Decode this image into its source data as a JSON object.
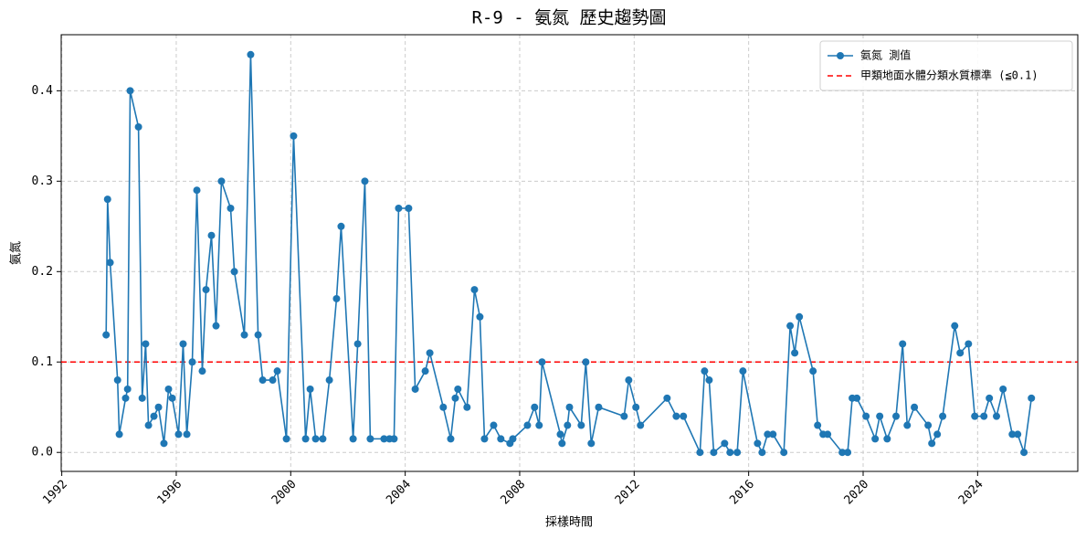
{
  "chart_data": {
    "type": "line",
    "title": "R-9 - 氨氮 歷史趨勢圖",
    "xlabel": "採樣時間",
    "ylabel": "氨氮",
    "xlim": [
      1991.98,
      2027.5
    ],
    "xticks": [
      1992,
      1996,
      2000,
      2004,
      2008,
      2012,
      2016,
      2020,
      2024
    ],
    "ylim": [
      -0.021,
      0.462
    ],
    "yticks": [
      {
        "value": 0,
        "label": "0.0"
      },
      0.1,
      0.2,
      0.3,
      0.4
    ],
    "grid": true,
    "legend": "upper right",
    "series": [
      {
        "name": "氨氮 測值",
        "color": "#1f77b4",
        "x": [
          1993.55,
          1993.6,
          1993.69,
          1993.95,
          1994.01,
          1994.23,
          1994.3,
          1994.39,
          1994.68,
          1994.81,
          1994.93,
          1995.03,
          1995.22,
          1995.38,
          1995.57,
          1995.73,
          1995.86,
          1996.08,
          1996.24,
          1996.37,
          1996.56,
          1996.72,
          1996.91,
          1997.04,
          1997.23,
          1997.39,
          1997.58,
          1997.9,
          1998.03,
          1998.38,
          1998.6,
          1998.86,
          1999.02,
          1999.37,
          1999.53,
          1999.85,
          2000.1,
          2000.52,
          2000.68,
          2000.87,
          2001.12,
          2001.35,
          2001.6,
          2001.76,
          2002.18,
          2002.34,
          2002.59,
          2002.78,
          2003.26,
          2003.45,
          2003.61,
          2003.77,
          2004.12,
          2004.35,
          2004.7,
          2004.86,
          2005.33,
          2005.59,
          2005.75,
          2005.84,
          2006.16,
          2006.42,
          2006.61,
          2006.77,
          2007.09,
          2007.34,
          2007.66,
          2007.76,
          2008.27,
          2008.52,
          2008.68,
          2008.78,
          2009.42,
          2009.48,
          2009.67,
          2009.74,
          2010.15,
          2010.31,
          2010.5,
          2010.76,
          2011.65,
          2011.81,
          2012.06,
          2012.22,
          2013.15,
          2013.47,
          2013.72,
          2014.3,
          2014.46,
          2014.62,
          2014.78,
          2015.16,
          2015.35,
          2015.6,
          2015.8,
          2016.31,
          2016.47,
          2016.66,
          2016.85,
          2017.23,
          2017.45,
          2017.61,
          2017.77,
          2018.25,
          2018.41,
          2018.6,
          2018.76,
          2019.27,
          2019.46,
          2019.62,
          2019.78,
          2020.1,
          2020.42,
          2020.58,
          2020.84,
          2021.15,
          2021.38,
          2021.54,
          2021.79,
          2022.27,
          2022.4,
          2022.59,
          2022.78,
          2023.2,
          2023.39,
          2023.68,
          2023.9,
          2024.22,
          2024.41,
          2024.66,
          2024.89,
          2025.21,
          2025.4,
          2025.62,
          2025.88
        ],
        "values": [
          0.13,
          0.28,
          0.21,
          0.08,
          0.02,
          0.06,
          0.07,
          0.4,
          0.36,
          0.06,
          0.12,
          0.03,
          0.04,
          0.05,
          0.01,
          0.07,
          0.06,
          0.02,
          0.12,
          0.02,
          0.1,
          0.29,
          0.09,
          0.18,
          0.24,
          0.14,
          0.3,
          0.27,
          0.2,
          0.13,
          0.44,
          0.13,
          0.08,
          0.08,
          0.09,
          0.015,
          0.35,
          0.015,
          0.07,
          0.015,
          0.015,
          0.08,
          0.17,
          0.25,
          0.015,
          0.12,
          0.3,
          0.015,
          0.015,
          0.015,
          0.015,
          0.27,
          0.27,
          0.07,
          0.09,
          0.11,
          0.05,
          0.015,
          0.06,
          0.07,
          0.05,
          0.18,
          0.15,
          0.015,
          0.03,
          0.015,
          0.01,
          0.015,
          0.03,
          0.05,
          0.03,
          0.1,
          0.02,
          0.01,
          0.03,
          0.05,
          0.03,
          0.1,
          0.01,
          0.05,
          0.04,
          0.08,
          0.05,
          0.03,
          0.06,
          0.04,
          0.04,
          0,
          0.09,
          0.08,
          0,
          0.01,
          0,
          0,
          0.09,
          0.01,
          0,
          0.02,
          0.02,
          0,
          0.14,
          0.11,
          0.15,
          0.09,
          0.03,
          0.02,
          0.02,
          0,
          0,
          0.06,
          0.06,
          0.04,
          0.015,
          0.04,
          0.015,
          0.04,
          0.12,
          0.03,
          0.05,
          0.03,
          0.01,
          0.02,
          0.04,
          0.14,
          0.11,
          0.12,
          0.04,
          0.04,
          0.06,
          0.04,
          0.07,
          0.02,
          0.02,
          0,
          0.06
        ]
      }
    ],
    "reference_lines": [
      {
        "name": "甲類地面水體分類水質標準 (≦0.1)",
        "value": 0.1,
        "color": "#ff0000",
        "style": "dashed"
      }
    ]
  }
}
